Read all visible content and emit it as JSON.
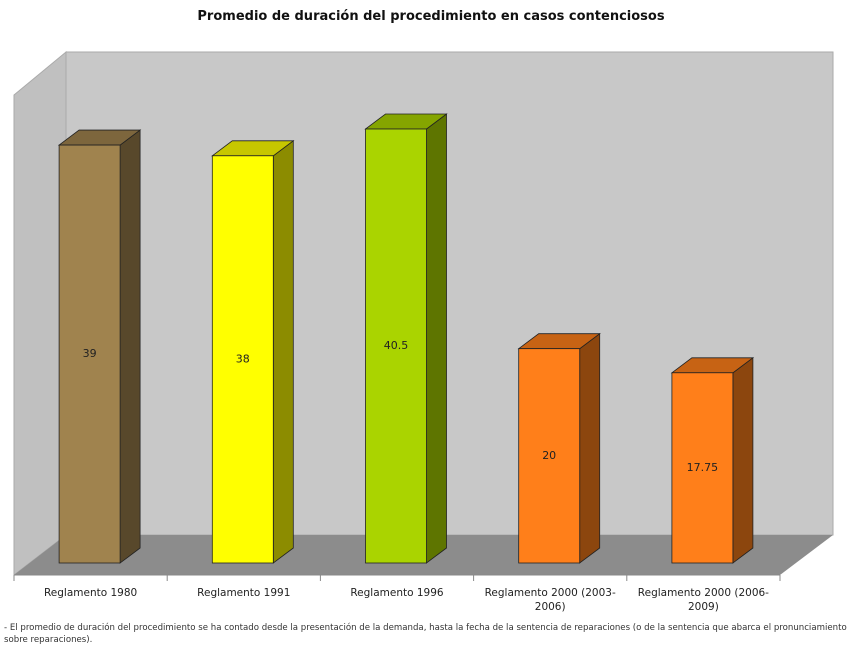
{
  "chart_data": {
    "type": "bar3d",
    "title": "Promedio de duración del procedimiento en casos contenciosos",
    "categories": [
      "Reglamento 1980",
      "Reglamento 1991",
      "Reglamento 1996",
      "Reglamento 2000 (2003-2006)",
      "Reglamento 2000 (2006-2009)"
    ],
    "values": [
      39,
      38,
      40.5,
      20,
      17.75
    ],
    "colors": [
      "#a0834e",
      "#ffff00",
      "#aad400",
      "#ff7f1a",
      "#ff7f1a"
    ],
    "footnote": "- El promedio de duración del procedimiento se ha contado desde la presentación de la demanda, hasta la fecha de la sentencia de reparaciones (o de la sentencia que abarca el pronunciamiento sobre reparaciones)."
  }
}
